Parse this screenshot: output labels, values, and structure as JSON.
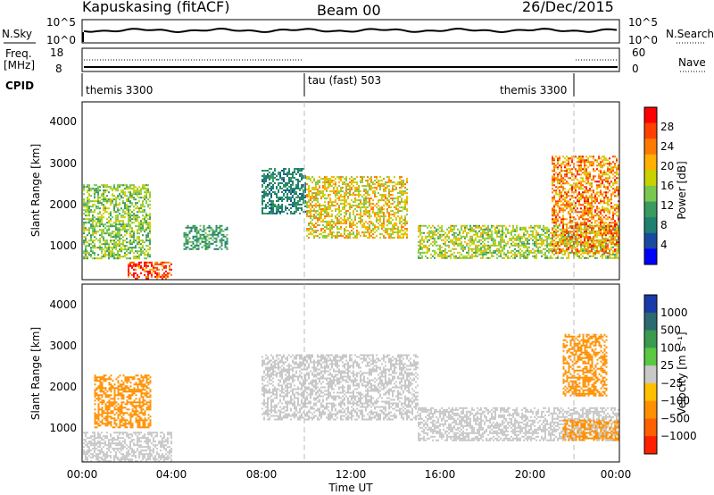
{
  "header": {
    "station": "Kapuskasing (fitACF)",
    "beam": "Beam 00",
    "date": "26/Dec/2015"
  },
  "noise_panel": {
    "left_label": "N.Sky",
    "left_ticks": [
      "10^5",
      "10^0"
    ],
    "right_label": "N.Search",
    "right_ticks": [
      "10^5",
      "10^0"
    ]
  },
  "freq_panel": {
    "left_label_top": "Freq.",
    "left_label_bottom": "[MHz]",
    "left_ticks": [
      "18",
      "8"
    ],
    "right_label": "Nave",
    "right_ticks": [
      "60",
      "0"
    ]
  },
  "cpid": {
    "label": "CPID",
    "segments": [
      "themis 3300",
      "tau (fast) 503",
      "themis 3300"
    ]
  },
  "axes": {
    "ylabel": "Slant Range [km]",
    "xlabel": "Time UT",
    "y_ticks": [
      "4000",
      "3000",
      "2000",
      "1000"
    ],
    "x_ticks": [
      "00:00",
      "04:00",
      "08:00",
      "12:00",
      "16:00",
      "20:00",
      "00:00"
    ]
  },
  "power_colorbar": {
    "label": "Power [dB]",
    "ticks": [
      "28",
      "24",
      "20",
      "16",
      "12",
      "8",
      "4"
    ],
    "colors": [
      "#ff0000",
      "#ff4000",
      "#ff7a00",
      "#ffb000",
      "#c8d200",
      "#7ac850",
      "#3a9a60",
      "#208070",
      "#1a4aa0",
      "#0000ff"
    ]
  },
  "velocity_colorbar": {
    "label": "Velocity [m s⁻¹]",
    "ticks": [
      "1000",
      "500",
      "100",
      "25",
      "−25",
      "−100",
      "−500",
      "−1000"
    ],
    "colors": [
      "#1a3aa8",
      "#2a6a70",
      "#3a9a50",
      "#5ac840",
      "#c8c8c8",
      "#ffc000",
      "#ff9000",
      "#ff6000",
      "#ff2000"
    ]
  },
  "chart_data": [
    {
      "type": "heatmap",
      "title": "Power",
      "xlabel": "Time UT",
      "ylabel": "Slant Range [km]",
      "xlim": [
        0,
        24
      ],
      "ylim": [
        180,
        4500
      ],
      "clim": [
        0,
        30
      ],
      "regions": [
        {
          "t0": 0.0,
          "t1": 3.0,
          "r0": 700,
          "r1": 2500,
          "value": 14
        },
        {
          "t0": 2.0,
          "t1": 4.0,
          "r0": 180,
          "r1": 600,
          "value": 27
        },
        {
          "t0": 4.5,
          "t1": 6.5,
          "r0": 900,
          "r1": 1500,
          "value": 10
        },
        {
          "t0": 8.0,
          "t1": 10.0,
          "r0": 1800,
          "r1": 2900,
          "value": 8
        },
        {
          "t0": 10.0,
          "t1": 14.5,
          "r0": 1200,
          "r1": 2700,
          "value": 18
        },
        {
          "t0": 15.0,
          "t1": 24.0,
          "r0": 700,
          "r1": 1500,
          "value": 15
        },
        {
          "t0": 21.0,
          "t1": 24.0,
          "r0": 800,
          "r1": 3200,
          "value": 22
        }
      ]
    },
    {
      "type": "heatmap",
      "title": "Velocity",
      "xlabel": "Time UT",
      "ylabel": "Slant Range [km]",
      "xlim": [
        0,
        24
      ],
      "ylim": [
        180,
        4500
      ],
      "clim": [
        -1000,
        1000
      ],
      "regions": [
        {
          "t0": 0.5,
          "t1": 3.0,
          "r0": 1000,
          "r1": 2300,
          "value": -300
        },
        {
          "t0": 0.0,
          "t1": 4.0,
          "r0": 180,
          "r1": 900,
          "value": 0
        },
        {
          "t0": 8.0,
          "t1": 15.0,
          "r0": 1200,
          "r1": 2800,
          "value": 0
        },
        {
          "t0": 15.0,
          "t1": 24.0,
          "r0": 700,
          "r1": 1500,
          "value": 0
        },
        {
          "t0": 21.5,
          "t1": 24.0,
          "r0": 700,
          "r1": 1200,
          "value": -200
        },
        {
          "t0": 21.5,
          "t1": 23.5,
          "r0": 1800,
          "r1": 3300,
          "value": -150
        }
      ]
    }
  ]
}
